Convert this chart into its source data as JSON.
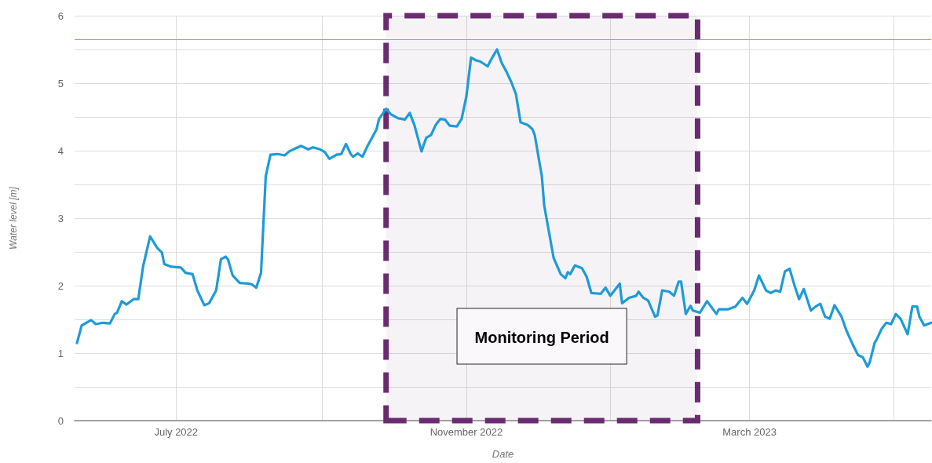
{
  "chart_data": {
    "type": "line",
    "xlabel": "Date",
    "ylabel": "Water level [m]",
    "x": [
      "2022-05-20",
      "2022-05-22",
      "2022-05-26",
      "2022-05-28",
      "2022-05-31",
      "2022-06-03",
      "2022-06-05",
      "2022-06-06",
      "2022-06-08",
      "2022-06-10",
      "2022-06-13",
      "2022-06-15",
      "2022-06-17",
      "2022-06-20",
      "2022-06-23",
      "2022-06-25",
      "2022-06-26",
      "2022-06-29",
      "2022-07-03",
      "2022-07-05",
      "2022-07-08",
      "2022-07-10",
      "2022-07-13",
      "2022-07-15",
      "2022-07-18",
      "2022-07-20",
      "2022-07-22",
      "2022-07-23",
      "2022-07-25",
      "2022-07-28",
      "2022-08-01",
      "2022-08-02",
      "2022-08-04",
      "2022-08-06",
      "2022-08-08",
      "2022-08-10",
      "2022-08-13",
      "2022-08-16",
      "2022-08-18",
      "2022-08-21",
      "2022-08-23",
      "2022-08-26",
      "2022-08-28",
      "2022-08-31",
      "2022-09-02",
      "2022-09-04",
      "2022-09-07",
      "2022-09-09",
      "2022-09-11",
      "2022-09-13",
      "2022-09-14",
      "2022-09-16",
      "2022-09-18",
      "2022-09-20",
      "2022-09-22",
      "2022-09-24",
      "2022-09-25",
      "2022-09-28",
      "2022-09-30",
      "2022-10-03",
      "2022-10-06",
      "2022-10-08",
      "2022-10-10",
      "2022-10-13",
      "2022-10-15",
      "2022-10-17",
      "2022-10-19",
      "2022-10-21",
      "2022-10-23",
      "2022-10-25",
      "2022-10-28",
      "2022-10-30",
      "2022-11-01",
      "2022-11-03",
      "2022-11-05",
      "2022-11-07",
      "2022-11-10",
      "2022-11-12",
      "2022-11-14",
      "2022-11-16",
      "2022-11-18",
      "2022-11-20",
      "2022-11-22",
      "2022-11-24",
      "2022-11-27",
      "2022-11-29",
      "2022-11-30",
      "2022-12-03",
      "2022-12-04",
      "2022-12-06",
      "2022-12-08",
      "2022-12-11",
      "2022-12-13",
      "2022-12-14",
      "2022-12-15",
      "2022-12-17",
      "2022-12-20",
      "2022-12-22",
      "2022-12-24",
      "2022-12-28",
      "2022-12-30",
      "2023-01-01",
      "2023-01-05",
      "2023-01-06",
      "2023-01-09",
      "2023-01-12",
      "2023-01-13",
      "2023-01-15",
      "2023-01-17",
      "2023-01-20",
      "2023-01-21",
      "2023-01-23",
      "2023-01-26",
      "2023-01-28",
      "2023-01-30",
      "2023-01-31",
      "2023-02-02",
      "2023-02-04",
      "2023-02-05",
      "2023-02-08",
      "2023-02-11",
      "2023-02-15",
      "2023-02-16",
      "2023-02-20",
      "2023-02-23",
      "2023-02-26",
      "2023-02-28",
      "2023-03-03",
      "2023-03-05",
      "2023-03-08",
      "2023-03-10",
      "2023-03-12",
      "2023-03-14",
      "2023-03-16",
      "2023-03-18",
      "2023-03-20",
      "2023-03-22",
      "2023-03-24",
      "2023-03-27",
      "2023-03-29",
      "2023-03-31",
      "2023-04-02",
      "2023-04-04",
      "2023-04-06",
      "2023-04-09",
      "2023-04-11",
      "2023-04-14",
      "2023-04-16",
      "2023-04-18",
      "2023-04-20",
      "2023-04-21",
      "2023-04-23",
      "2023-04-24",
      "2023-04-26",
      "2023-04-28",
      "2023-04-30",
      "2023-05-02",
      "2023-05-04",
      "2023-05-07",
      "2023-05-09",
      "2023-05-11",
      "2023-05-12",
      "2023-05-14",
      "2023-05-17"
    ],
    "series": [
      {
        "color": "#1e9bd7",
        "values": [
          1.15,
          1.41,
          1.49,
          1.43,
          1.45,
          1.44,
          1.58,
          1.6,
          1.77,
          1.72,
          1.8,
          1.8,
          2.28,
          2.73,
          2.56,
          2.49,
          2.32,
          2.28,
          2.27,
          2.19,
          2.17,
          1.93,
          1.71,
          1.74,
          1.93,
          2.39,
          2.43,
          2.39,
          2.15,
          2.04,
          2.03,
          2.02,
          1.97,
          2.19,
          3.62,
          3.94,
          3.95,
          3.93,
          3.99,
          4.04,
          4.07,
          4.02,
          4.05,
          4.02,
          3.98,
          3.88,
          3.94,
          3.95,
          4.1,
          3.95,
          3.91,
          3.96,
          3.91,
          4.06,
          4.19,
          4.32,
          4.47,
          4.62,
          4.54,
          4.48,
          4.46,
          4.56,
          4.38,
          3.99,
          4.19,
          4.23,
          4.38,
          4.47,
          4.46,
          4.37,
          4.36,
          4.47,
          4.8,
          5.38,
          5.34,
          5.32,
          5.25,
          5.38,
          5.5,
          5.3,
          5.17,
          5.02,
          4.84,
          4.42,
          4.38,
          4.32,
          4.23,
          3.62,
          3.19,
          2.8,
          2.41,
          2.17,
          2.11,
          2.2,
          2.17,
          2.3,
          2.26,
          2.13,
          1.89,
          1.88,
          1.97,
          1.85,
          2.03,
          1.74,
          1.82,
          1.85,
          1.91,
          1.82,
          1.78,
          1.54,
          1.56,
          1.93,
          1.91,
          1.85,
          2.06,
          2.06,
          1.58,
          1.7,
          1.63,
          1.6,
          1.77,
          1.58,
          1.65,
          1.65,
          1.69,
          1.82,
          1.73,
          1.93,
          2.15,
          1.93,
          1.89,
          1.93,
          1.91,
          2.21,
          2.25,
          2.01,
          1.8,
          1.95,
          1.63,
          1.69,
          1.73,
          1.54,
          1.51,
          1.71,
          1.54,
          1.34,
          1.11,
          0.97,
          0.94,
          0.8,
          0.87,
          1.15,
          1.21,
          1.36,
          1.45,
          1.43,
          1.58,
          1.51,
          1.28,
          1.69,
          1.69,
          1.54,
          1.41,
          1.45
        ]
      }
    ],
    "xlim": [
      "2022-05-19",
      "2023-05-17"
    ],
    "xticks": [
      {
        "value": "2022-07-01",
        "label": "July 2022"
      },
      {
        "value": "2022-09-01",
        "label": null
      },
      {
        "value": "2022-11-01",
        "label": "November 2022"
      },
      {
        "value": "2023-01-01",
        "label": null
      },
      {
        "value": "2023-03-01",
        "label": "March 2023"
      },
      {
        "value": "2023-05-01",
        "label": null
      }
    ],
    "ylim": [
      0,
      6
    ],
    "yticks": [
      0,
      {
        "value": 0.5,
        "label": null
      },
      1,
      {
        "value": 1.5,
        "label": null
      },
      2,
      {
        "value": 2.5,
        "label": null
      },
      3,
      {
        "value": 3.5,
        "label": null
      },
      4,
      {
        "value": 4.5,
        "label": null
      },
      5,
      {
        "value": 5.5,
        "label": null
      },
      6
    ],
    "ref_lines": [
      {
        "axis": "y",
        "value": 5.65,
        "color": "#f08c3c"
      }
    ],
    "bands": [
      {
        "axis": "x",
        "from": "2022-09-28",
        "to": "2023-02-07",
        "label": "Monitoring Period",
        "color": "#6a2c70"
      }
    ],
    "grid": true,
    "marker": "none",
    "line_style": "solid"
  }
}
